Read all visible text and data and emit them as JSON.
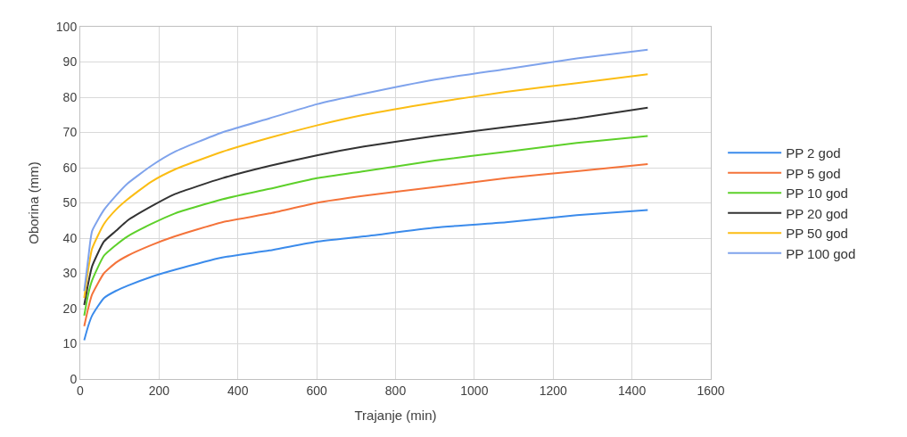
{
  "chart_data": {
    "type": "line",
    "xlabel": "Trajanje (min)",
    "ylabel": "Oborina (mm)",
    "x": [
      10,
      20,
      30,
      60,
      90,
      120,
      180,
      240,
      360,
      480,
      600,
      720,
      900,
      1080,
      1260,
      1440
    ],
    "series": [
      {
        "name": "PP 2 god",
        "color": "#3b8beb",
        "values": [
          11,
          15,
          18,
          23,
          25,
          26.5,
          29,
          31,
          34.5,
          36.5,
          39,
          40.5,
          43,
          44.5,
          46.5,
          48
        ]
      },
      {
        "name": "PP 5 god",
        "color": "#f4733a",
        "values": [
          15,
          20,
          24,
          30,
          33,
          35,
          38,
          40.5,
          44.5,
          47,
          50,
          52,
          54.5,
          57,
          59,
          61
        ]
      },
      {
        "name": "PP 10 god",
        "color": "#5dd02a",
        "values": [
          18,
          24,
          28,
          35,
          38,
          40.5,
          44,
          47,
          51,
          54,
          57,
          59,
          62,
          64.5,
          67,
          69
        ]
      },
      {
        "name": "PP 20 god",
        "color": "#333333",
        "values": [
          21,
          27,
          32,
          39,
          42,
          45,
          49,
          52.5,
          57,
          60.5,
          63.5,
          66,
          69,
          71.5,
          74,
          77
        ]
      },
      {
        "name": "PP 50 god",
        "color": "#fbbd14",
        "values": [
          23,
          31,
          37,
          44,
          48,
          51,
          56,
          59.5,
          64.5,
          68.5,
          72,
          75,
          78.5,
          81.5,
          84,
          86.5
        ]
      },
      {
        "name": "PP 100 god",
        "color": "#7fa3ec",
        "values": [
          25,
          34,
          42,
          48,
          52,
          55.5,
          60.5,
          64.5,
          70,
          74,
          78,
          81,
          85,
          88,
          91,
          93.5
        ]
      }
    ],
    "xlim": [
      0,
      1600
    ],
    "xticks": [
      0,
      200,
      400,
      600,
      800,
      1000,
      1200,
      1400,
      1600
    ],
    "ylim": [
      0,
      100
    ],
    "yticks": [
      0,
      10,
      20,
      30,
      40,
      50,
      60,
      70,
      80,
      90,
      100
    ],
    "grid": true,
    "legend": "right",
    "marker": "none",
    "line_style": "solid"
  }
}
